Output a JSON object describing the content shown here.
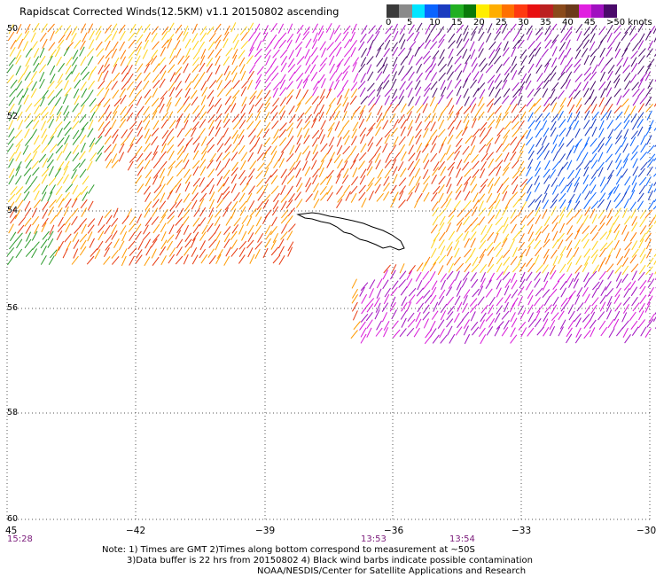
{
  "title": "Rapidscat Corrected Winds(12.5KM) v1.1 20150802 ascending",
  "legend": {
    "labels": [
      "0",
      "5",
      "10",
      "15",
      "20",
      "25",
      "30",
      "35",
      "40",
      "45",
      ">50 knots"
    ],
    "colors": [
      "#3a3a3a",
      "#8a8a8a",
      "#00e5ff",
      "#0a64ff",
      "#1a3cc0",
      "#22b022",
      "#0a7a0a",
      "#ffee00",
      "#ffae00",
      "#ff7000",
      "#ff3a10",
      "#e81010",
      "#bb2020",
      "#8a4a1a",
      "#6b3a1a",
      "#e020e0",
      "#a010c0",
      "#4a0a6a"
    ]
  },
  "latitude_labels": [
    "50",
    "52",
    "54",
    "56",
    "58",
    "60"
  ],
  "longitude_labels": [
    "45",
    "−42",
    "−39",
    "−36",
    "−33",
    "−30"
  ],
  "time_labels": [
    "15:28",
    "13:53",
    "13:54"
  ],
  "notes": [
    "Note: 1) Times are GMT 2)Times along bottom correspond to measurement at ~50S",
    "3)Data buffer is 22 hrs from 20150802 4) Black wind barbs indicate possible contamination",
    "NOAA/NESDIS/Center for Satellite Applications and Research"
  ]
}
